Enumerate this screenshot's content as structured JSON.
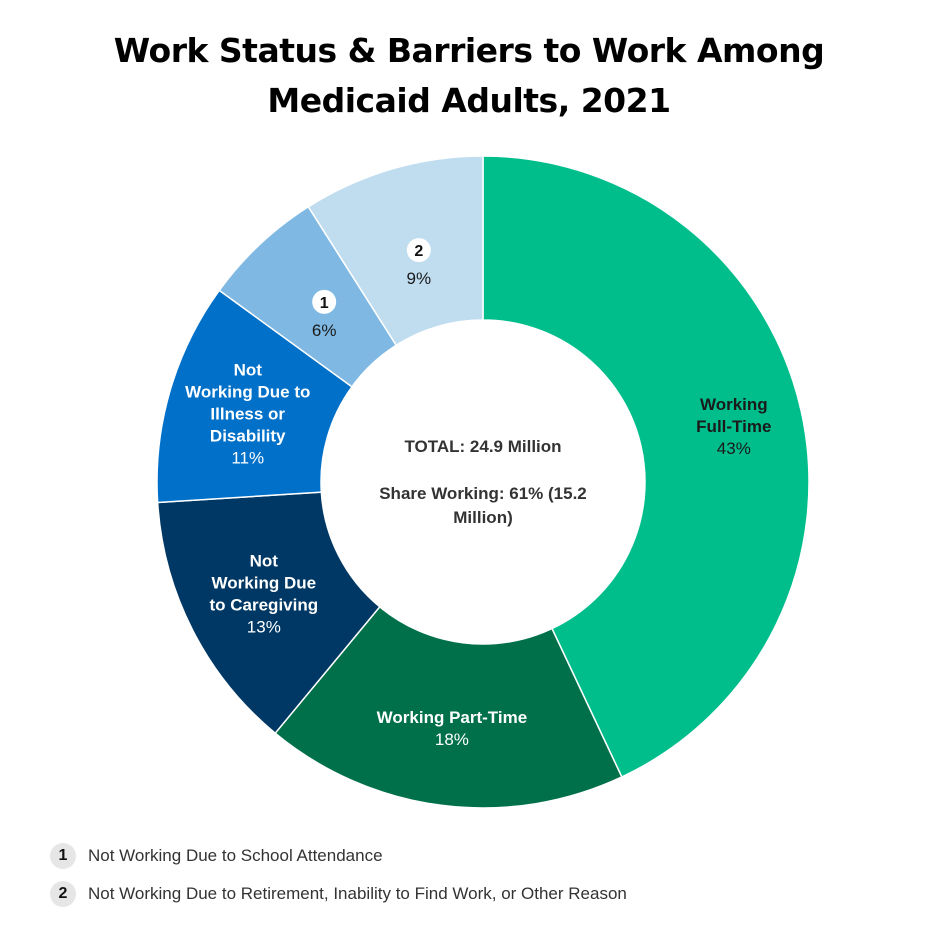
{
  "title": {
    "line1": "Work Status & Barriers to Work Among",
    "line2": "Medicaid Adults, 2021"
  },
  "chart_data": {
    "type": "pie",
    "variant": "donut",
    "title": "Work Status & Barriers to Work Among Medicaid Adults, 2021",
    "center_text": {
      "total": "TOTAL: 24.9 Million",
      "share_line1": "Share Working: 61% (15.2",
      "share_line2": "Million)"
    },
    "slices": [
      {
        "key": "full-time",
        "label_lines": [
          "Working",
          "Full-Time"
        ],
        "value": 43,
        "value_label": "43%",
        "color": "#00be8c",
        "text_color": "#1a1a1a"
      },
      {
        "key": "part-time",
        "label_lines": [
          "Working Part-Time"
        ],
        "value": 18,
        "value_label": "18%",
        "color": "#00704a",
        "text_color": "#ffffff"
      },
      {
        "key": "caregiving",
        "label_lines": [
          "Not",
          "Working Due",
          "to Caregiving"
        ],
        "value": 13,
        "value_label": "13%",
        "color": "#003865",
        "text_color": "#ffffff"
      },
      {
        "key": "illness",
        "label_lines": [
          "Not",
          "Working Due to",
          "Illness or",
          "Disability"
        ],
        "value": 11,
        "value_label": "11%",
        "color": "#0070c9",
        "text_color": "#ffffff"
      },
      {
        "key": "school",
        "label_lines": [],
        "badge": "1",
        "value": 6,
        "value_label": "6%",
        "color": "#7fb9e3",
        "text_color": "#1a1a1a"
      },
      {
        "key": "other",
        "label_lines": [],
        "badge": "2",
        "value": 9,
        "value_label": "9%",
        "color": "#c0ddf0",
        "text_color": "#1a1a1a"
      }
    ]
  },
  "footnotes": [
    {
      "num": "1",
      "text": "Not Working Due to School Attendance"
    },
    {
      "num": "2",
      "text": "Not Working Due to Retirement, Inability to Find Work, or Other Reason"
    }
  ]
}
